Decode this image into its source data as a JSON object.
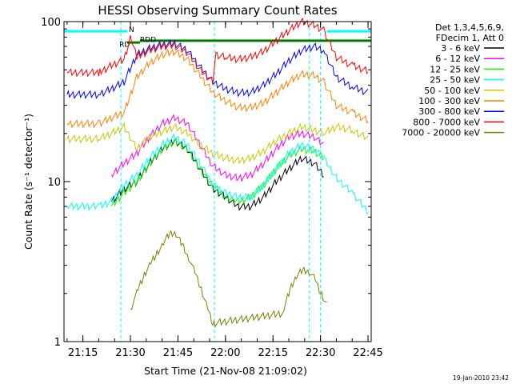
{
  "chart_data": {
    "type": "line",
    "title": "HESSI Observing Summary Count Rates",
    "xlabel": "Start Time (21-Nov-08 21:09:02)",
    "ylabel": "Count Rate (s⁻¹ detector⁻¹)",
    "y_scale": "log",
    "ylim": [
      1,
      100
    ],
    "xlim": [
      "21:09:02",
      "22:46:00"
    ],
    "x_tick_labels": [
      "21:15",
      "21:30",
      "21:45",
      "22:00",
      "22:15",
      "22:30",
      "22:45"
    ],
    "y_tick_labels": [
      "1",
      "10",
      "100"
    ],
    "legend_header": [
      "Det 1,3,4,5,6,9,",
      "FDecim 1, Att 0"
    ],
    "legend_position": "right",
    "timestamp": "19-Jan-2010 23:42",
    "annotations": [
      {
        "text": "N",
        "color": "#00ffff"
      },
      {
        "text": "RD",
        "color": "#008000"
      },
      {
        "text": "RDD",
        "color": "#008000"
      }
    ],
    "series": [
      {
        "name": "3 - 6 keV",
        "color": "#000000",
        "points": [
          [
            "21:24",
            7.5
          ],
          [
            "21:28",
            9
          ],
          [
            "21:32",
            10
          ],
          [
            "21:36",
            13
          ],
          [
            "21:40",
            16
          ],
          [
            "21:44",
            18
          ],
          [
            "21:48",
            16
          ],
          [
            "21:52",
            12
          ],
          [
            "21:56",
            9
          ],
          [
            "22:00",
            8
          ],
          [
            "22:04",
            7
          ],
          [
            "22:08",
            7
          ],
          [
            "22:12",
            8
          ],
          [
            "22:16",
            10
          ],
          [
            "22:20",
            12
          ],
          [
            "22:24",
            14
          ],
          [
            "22:28",
            13
          ],
          [
            "22:31",
            11
          ]
        ]
      },
      {
        "name": "6 - 12 keV",
        "color": "#ff00ff",
        "points": [
          [
            "21:24",
            11
          ],
          [
            "21:28",
            13
          ],
          [
            "21:32",
            15
          ],
          [
            "21:36",
            19
          ],
          [
            "21:40",
            23
          ],
          [
            "21:44",
            25
          ],
          [
            "21:48",
            23
          ],
          [
            "21:52",
            17
          ],
          [
            "21:56",
            12.5
          ],
          [
            "22:00",
            11
          ],
          [
            "22:04",
            10.5
          ],
          [
            "22:08",
            11
          ],
          [
            "22:12",
            13
          ],
          [
            "22:16",
            16
          ],
          [
            "22:20",
            19
          ],
          [
            "22:24",
            20
          ],
          [
            "22:28",
            19
          ],
          [
            "22:31",
            17
          ]
        ]
      },
      {
        "name": "12 - 25 keV",
        "color": "#00ff00",
        "points": [
          [
            "21:24",
            7
          ],
          [
            "21:28",
            8.5
          ],
          [
            "21:32",
            10
          ],
          [
            "21:36",
            13
          ],
          [
            "21:40",
            16
          ],
          [
            "21:44",
            18
          ],
          [
            "21:48",
            16
          ],
          [
            "21:52",
            12
          ],
          [
            "21:56",
            9.5
          ],
          [
            "22:00",
            8
          ],
          [
            "22:04",
            7.5
          ],
          [
            "22:08",
            8
          ],
          [
            "22:12",
            9.5
          ],
          [
            "22:16",
            12
          ],
          [
            "22:20",
            14.5
          ],
          [
            "22:24",
            16
          ],
          [
            "22:28",
            15.5
          ],
          [
            "22:31",
            14
          ]
        ]
      },
      {
        "name": "25 - 50 keV",
        "color": "#00ffff",
        "points": [
          [
            "21:10",
            7
          ],
          [
            "21:20",
            7
          ],
          [
            "21:24",
            7.5
          ],
          [
            "21:28",
            9.5
          ],
          [
            "21:32",
            11
          ],
          [
            "21:36",
            14
          ],
          [
            "21:40",
            17
          ],
          [
            "21:44",
            19
          ],
          [
            "21:48",
            17
          ],
          [
            "21:52",
            13
          ],
          [
            "21:56",
            9.5
          ],
          [
            "22:00",
            8.5
          ],
          [
            "22:04",
            8
          ],
          [
            "22:08",
            8
          ],
          [
            "22:12",
            9.5
          ],
          [
            "22:16",
            12
          ],
          [
            "22:20",
            15
          ],
          [
            "22:24",
            17
          ],
          [
            "22:28",
            16
          ],
          [
            "22:31",
            14
          ],
          [
            "22:35",
            10.5
          ],
          [
            "22:40",
            8.5
          ],
          [
            "22:45",
            6.5
          ]
        ]
      },
      {
        "name": "50 - 100 keV",
        "color": "#c8c800",
        "points": [
          [
            "21:10",
            18.5
          ],
          [
            "21:20",
            18.5
          ],
          [
            "21:24",
            20
          ],
          [
            "21:28",
            22
          ],
          [
            "21:32",
            16
          ],
          [
            "21:36",
            19
          ],
          [
            "21:40",
            20.5
          ],
          [
            "21:44",
            22
          ],
          [
            "21:48",
            20
          ],
          [
            "21:52",
            17
          ],
          [
            "21:56",
            15
          ],
          [
            "22:00",
            14
          ],
          [
            "22:04",
            13.5
          ],
          [
            "22:08",
            14
          ],
          [
            "22:12",
            15.5
          ],
          [
            "22:16",
            18
          ],
          [
            "22:20",
            20
          ],
          [
            "22:24",
            22
          ],
          [
            "22:28",
            21
          ],
          [
            "22:31",
            20
          ],
          [
            "22:35",
            22
          ],
          [
            "22:40",
            21
          ],
          [
            "22:45",
            18.5
          ]
        ]
      },
      {
        "name": "100 - 300 keV",
        "color": "#ff8000",
        "points": [
          [
            "21:10",
            23
          ],
          [
            "21:20",
            23
          ],
          [
            "21:24",
            25
          ],
          [
            "21:28",
            27
          ],
          [
            "21:32",
            45
          ],
          [
            "21:36",
            55
          ],
          [
            "21:40",
            62
          ],
          [
            "21:44",
            65
          ],
          [
            "21:48",
            58
          ],
          [
            "21:52",
            46
          ],
          [
            "21:56",
            36
          ],
          [
            "22:00",
            32
          ],
          [
            "22:04",
            29
          ],
          [
            "22:08",
            29
          ],
          [
            "22:12",
            31
          ],
          [
            "22:16",
            36
          ],
          [
            "22:20",
            42
          ],
          [
            "22:24",
            47
          ],
          [
            "22:28",
            46
          ],
          [
            "22:31",
            42
          ],
          [
            "22:35",
            30
          ],
          [
            "22:40",
            27
          ],
          [
            "22:45",
            24
          ]
        ]
      },
      {
        "name": "300 - 800 keV",
        "color": "#0000ff",
        "points": [
          [
            "21:10",
            35
          ],
          [
            "21:20",
            35
          ],
          [
            "21:24",
            38
          ],
          [
            "21:28",
            42
          ],
          [
            "21:32",
            62
          ],
          [
            "21:36",
            68
          ],
          [
            "21:40",
            72
          ],
          [
            "21:44",
            73
          ],
          [
            "21:48",
            66
          ],
          [
            "21:52",
            52
          ],
          [
            "21:56",
            42
          ],
          [
            "22:00",
            38
          ],
          [
            "22:04",
            36
          ],
          [
            "22:08",
            36
          ],
          [
            "22:12",
            40
          ],
          [
            "22:16",
            47
          ],
          [
            "22:20",
            57
          ],
          [
            "22:24",
            66
          ],
          [
            "22:28",
            70
          ],
          [
            "22:31",
            66
          ],
          [
            "22:35",
            45
          ],
          [
            "22:40",
            39
          ],
          [
            "22:45",
            36
          ]
        ]
      },
      {
        "name": "800 - 7000 keV",
        "color": "#ff0000",
        "points": [
          [
            "21:10",
            48
          ],
          [
            "21:20",
            48
          ],
          [
            "21:24",
            53
          ],
          [
            "21:28",
            58
          ],
          [
            "21:30",
            80
          ],
          [
            "21:32",
            60
          ],
          [
            "21:36",
            66
          ],
          [
            "21:40",
            70
          ],
          [
            "21:44",
            71
          ],
          [
            "21:48",
            64
          ],
          [
            "21:52",
            50
          ],
          [
            "21:56",
            42
          ],
          [
            "21:57",
            62
          ],
          [
            "22:00",
            60
          ],
          [
            "22:04",
            58
          ],
          [
            "22:08",
            60
          ],
          [
            "22:12",
            65
          ],
          [
            "22:16",
            76
          ],
          [
            "22:20",
            88
          ],
          [
            "22:24",
            100
          ],
          [
            "22:28",
            95
          ],
          [
            "22:31",
            88
          ],
          [
            "22:35",
            60
          ],
          [
            "22:40",
            53
          ],
          [
            "22:45",
            49
          ]
        ]
      },
      {
        "name": "7000 - 20000 keV",
        "color": "#808000",
        "points": [
          [
            "21:30",
            1.6
          ],
          [
            "21:32",
            2.0
          ],
          [
            "21:34",
            2.5
          ],
          [
            "21:36",
            3.0
          ],
          [
            "21:38",
            3.5
          ],
          [
            "21:40",
            4.0
          ],
          [
            "21:42",
            4.6
          ],
          [
            "21:44",
            4.8
          ],
          [
            "21:46",
            4.2
          ],
          [
            "21:48",
            3.5
          ],
          [
            "21:50",
            2.8
          ],
          [
            "21:52",
            2.2
          ],
          [
            "21:54",
            1.7
          ],
          [
            "21:56",
            1.3
          ],
          [
            "22:18",
            1.5
          ],
          [
            "22:20",
            2.0
          ],
          [
            "22:22",
            2.5
          ],
          [
            "22:24",
            2.8
          ],
          [
            "22:26",
            2.8
          ],
          [
            "22:28",
            2.5
          ],
          [
            "22:30",
            2.0
          ],
          [
            "22:32",
            1.7
          ]
        ]
      }
    ],
    "state_flags": [
      {
        "name": "N",
        "color": "#00ffff",
        "level": 87,
        "intervals": [
          [
            "21:09:02",
            "21:29"
          ],
          [
            "22:32",
            "22:46"
          ]
        ]
      },
      {
        "name": "RD",
        "color": "#008000",
        "level": 74,
        "intervals": [
          [
            "21:29",
            "21:33"
          ]
        ]
      },
      {
        "name": "RDD",
        "color": "#008000",
        "level": 76,
        "intervals": [
          [
            "21:33",
            "22:46"
          ]
        ]
      }
    ],
    "saa_lines": [
      "21:27",
      "21:56:30",
      "22:26:30",
      "22:30",
      "22:46"
    ]
  }
}
